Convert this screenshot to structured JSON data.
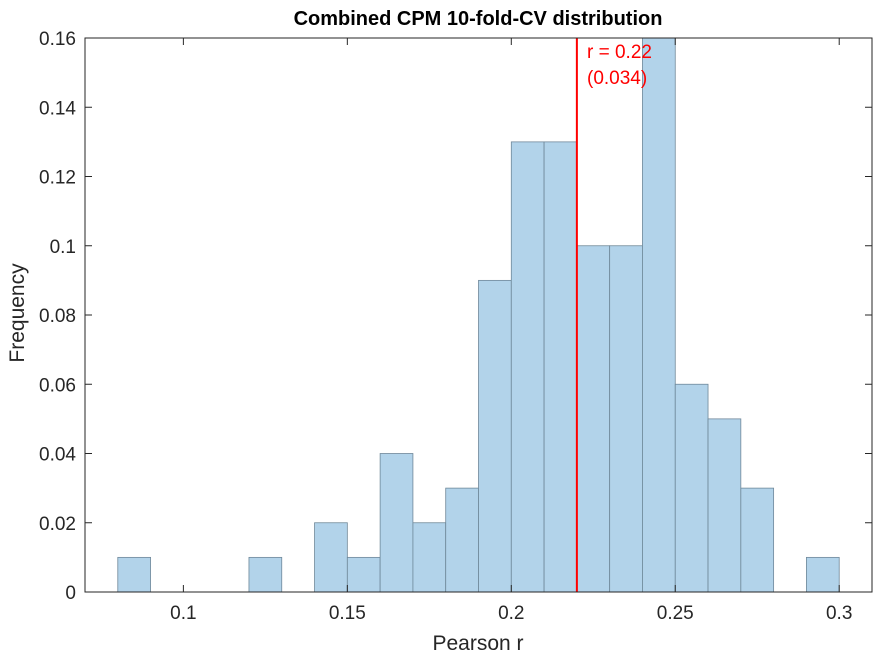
{
  "chart_data": {
    "type": "bar",
    "title": "Combined CPM 10-fold-CV distribution",
    "xlabel": "Pearson r",
    "ylabel": "Frequency",
    "xlim": [
      0.07,
      0.31
    ],
    "ylim": [
      0,
      0.16
    ],
    "xticks": [
      0.1,
      0.15,
      0.2,
      0.25,
      0.3
    ],
    "xtick_labels": [
      "0.1",
      "0.15",
      "0.2",
      "0.25",
      "0.3"
    ],
    "yticks": [
      0,
      0.02,
      0.04,
      0.06,
      0.08,
      0.1,
      0.12,
      0.14,
      0.16
    ],
    "ytick_labels": [
      "0",
      "0.02",
      "0.04",
      "0.06",
      "0.08",
      "0.1",
      "0.12",
      "0.14",
      "0.16"
    ],
    "bin_width": 0.01,
    "bins": [
      {
        "start": 0.08,
        "value": 0.01
      },
      {
        "start": 0.12,
        "value": 0.01
      },
      {
        "start": 0.14,
        "value": 0.02
      },
      {
        "start": 0.15,
        "value": 0.01
      },
      {
        "start": 0.16,
        "value": 0.04
      },
      {
        "start": 0.17,
        "value": 0.02
      },
      {
        "start": 0.18,
        "value": 0.03
      },
      {
        "start": 0.19,
        "value": 0.09
      },
      {
        "start": 0.2,
        "value": 0.13
      },
      {
        "start": 0.21,
        "value": 0.13
      },
      {
        "start": 0.22,
        "value": 0.1
      },
      {
        "start": 0.23,
        "value": 0.1
      },
      {
        "start": 0.24,
        "value": 0.16
      },
      {
        "start": 0.25,
        "value": 0.06
      },
      {
        "start": 0.26,
        "value": 0.05
      },
      {
        "start": 0.27,
        "value": 0.03
      },
      {
        "start": 0.29,
        "value": 0.01
      }
    ],
    "vline": {
      "x": 0.22,
      "label_line1": "r = 0.22",
      "label_line2": "(0.034)",
      "color": "#ff0000"
    },
    "colors": {
      "bar_fill": "#b2d3ea",
      "bar_edge": "#6f8899",
      "axis": "#262626"
    },
    "grid": false,
    "box": true
  }
}
